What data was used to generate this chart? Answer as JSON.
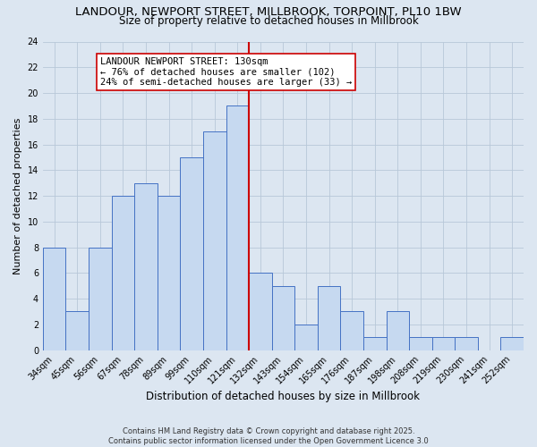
{
  "title": "LANDOUR, NEWPORT STREET, MILLBROOK, TORPOINT, PL10 1BW",
  "subtitle": "Size of property relative to detached houses in Millbrook",
  "xlabel": "Distribution of detached houses by size in Millbrook",
  "ylabel": "Number of detached properties",
  "categories": [
    "34sqm",
    "45sqm",
    "56sqm",
    "67sqm",
    "78sqm",
    "89sqm",
    "99sqm",
    "110sqm",
    "121sqm",
    "132sqm",
    "143sqm",
    "154sqm",
    "165sqm",
    "176sqm",
    "187sqm",
    "198sqm",
    "208sqm",
    "219sqm",
    "230sqm",
    "241sqm",
    "252sqm"
  ],
  "values": [
    8,
    3,
    8,
    12,
    13,
    12,
    15,
    17,
    19,
    6,
    5,
    2,
    5,
    3,
    1,
    3,
    1,
    1,
    1,
    0,
    1
  ],
  "bar_color": "#c6d9f0",
  "bar_edge_color": "#4472c4",
  "vline_color": "#cc0000",
  "annotation_title": "LANDOUR NEWPORT STREET: 130sqm",
  "annotation_line1": "← 76% of detached houses are smaller (102)",
  "annotation_line2": "24% of semi-detached houses are larger (33) →",
  "annotation_box_color": "#ffffff",
  "annotation_border_color": "#cc0000",
  "ylim": [
    0,
    24
  ],
  "yticks": [
    0,
    2,
    4,
    6,
    8,
    10,
    12,
    14,
    16,
    18,
    20,
    22,
    24
  ],
  "grid_color": "#b8c8d8",
  "background_color": "#dce6f1",
  "footer": "Contains HM Land Registry data © Crown copyright and database right 2025.\nContains public sector information licensed under the Open Government Licence 3.0",
  "title_fontsize": 9.5,
  "subtitle_fontsize": 8.5,
  "xlabel_fontsize": 8.5,
  "ylabel_fontsize": 8.0,
  "tick_fontsize": 7.0,
  "annotation_fontsize": 7.5,
  "footer_fontsize": 6.0
}
